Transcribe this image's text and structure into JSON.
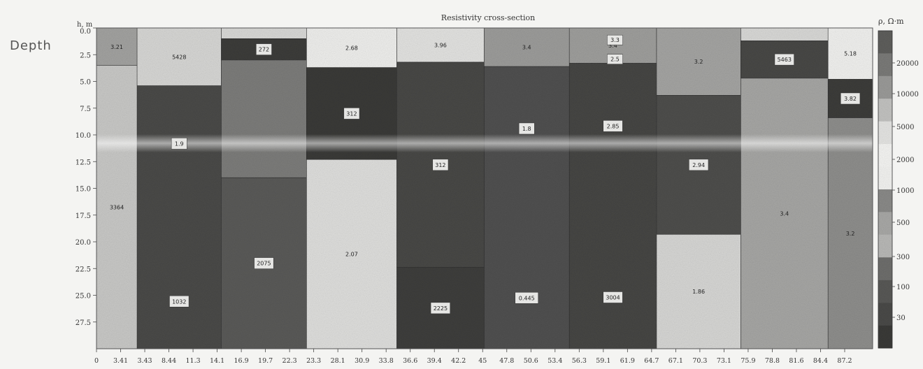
{
  "chart_data": {
    "type": "heatmap",
    "title": "Resistivity cross-section",
    "side_label": "Depth",
    "ylabel": "h, m",
    "colorbar_label": "ρ, Ω·m",
    "ylim": [
      0,
      30
    ],
    "y_ticks": [
      0.0,
      2.5,
      5.0,
      7.5,
      10.0,
      12.5,
      15.0,
      17.5,
      20.0,
      22.5,
      25.0,
      27.5
    ],
    "y_tick_labels": [
      "0.0",
      "2.5",
      "5.0",
      "7.5",
      "10.0",
      "12.5",
      "15.0",
      "17.5",
      "20.0",
      "22.5",
      "25.0",
      "27.5"
    ],
    "x_ticks": [
      0,
      3.41,
      3.43,
      8.44,
      11.3,
      14.1,
      16.9,
      19.7,
      22.3,
      23.3,
      28.1,
      30.9,
      33.8,
      36.6,
      39.4,
      42.2,
      45,
      47.8,
      50.6,
      53.4,
      56.3,
      59.1,
      61.9,
      64.7,
      67.1,
      70.3,
      73.1,
      75.9,
      78.8,
      81.6,
      84.4,
      87.2
    ],
    "x_tick_labels": [
      "0",
      "3.41",
      "3.43",
      "8.44",
      "11.3",
      "14.1",
      "16.9",
      "19.7",
      "22.3",
      "23.3",
      "28.1",
      "30.9",
      "33.8",
      "36.6",
      "39.4",
      "42.2",
      "45",
      "47.8",
      "50.6",
      "53.4",
      "56.3",
      "59.1",
      "61.9",
      "64.7",
      "67.1",
      "70.3",
      "73.1",
      "75.9",
      "78.8",
      "81.6",
      "84.4",
      "87.2"
    ],
    "colorbar_ticks": [
      "20000",
      "10000",
      "5000",
      "2000",
      "1000",
      "500",
      "300",
      "100",
      "30"
    ],
    "blocks": [
      {
        "x0": 0,
        "x1": 4.0,
        "y0": 0,
        "y1": 3.5,
        "color": "#a2a2a0",
        "label": "3.21"
      },
      {
        "x0": 0,
        "x1": 4.0,
        "y0": 3.5,
        "y1": 30,
        "color": "#c8c8c6",
        "label": "3364"
      },
      {
        "x0": 4.0,
        "x1": 12.3,
        "y0": 0,
        "y1": 5.4,
        "color": "#d6d6d4",
        "label": "5428"
      },
      {
        "x0": 4.0,
        "x1": 12.3,
        "y0": 5.4,
        "y1": 30,
        "color": "#4a4a48",
        "label": "1.9"
      },
      {
        "x0": 4.0,
        "x1": 12.3,
        "y0": 5.4,
        "y1": 30,
        "color": "#4a4a48",
        "label": "1032"
      },
      {
        "x0": 12.3,
        "x1": 20.7,
        "y0": 0,
        "y1": 1.0,
        "color": "#d8d8d6",
        "label": ""
      },
      {
        "x0": 12.3,
        "x1": 20.7,
        "y0": 1.0,
        "y1": 3.0,
        "color": "#3c3c3a",
        "label": "272"
      },
      {
        "x0": 12.3,
        "x1": 20.7,
        "y0": 3.0,
        "y1": 14.0,
        "color": "#7c7c7a",
        "label": ""
      },
      {
        "x0": 12.3,
        "x1": 20.7,
        "y0": 14.0,
        "y1": 30,
        "color": "#5a5a58",
        "label": "2075"
      },
      {
        "x0": 20.7,
        "x1": 29.6,
        "y0": 0,
        "y1": 3.7,
        "color": "#eeeeec",
        "label": "2.68"
      },
      {
        "x0": 20.7,
        "x1": 29.6,
        "y0": 3.7,
        "y1": 12.3,
        "color": "#3a3a38",
        "label": "312"
      },
      {
        "x0": 20.7,
        "x1": 29.6,
        "y0": 12.3,
        "y1": 30,
        "color": "#dededc",
        "label": "2.07"
      },
      {
        "x0": 29.6,
        "x1": 38.2,
        "y0": 0,
        "y1": 3.2,
        "color": "#e2e2e0",
        "label": "3.96"
      },
      {
        "x0": 29.6,
        "x1": 38.2,
        "y0": 3.2,
        "y1": 22.4,
        "color": "#484846",
        "label": "312"
      },
      {
        "x0": 29.6,
        "x1": 38.2,
        "y0": 22.4,
        "y1": 30,
        "color": "#3e3e3c",
        "label": "2225"
      },
      {
        "x0": 38.2,
        "x1": 46.6,
        "y0": 0,
        "y1": 3.6,
        "color": "#9c9c9a",
        "label": "3.4"
      },
      {
        "x0": 38.2,
        "x1": 46.6,
        "y0": 3.6,
        "y1": 30,
        "color": "#505050",
        "label": "1.8"
      },
      {
        "x0": 38.2,
        "x1": 46.6,
        "y0": 3.6,
        "y1": 30,
        "color": "#505050",
        "label": "0.445"
      },
      {
        "x0": 46.6,
        "x1": 55.2,
        "y0": 0,
        "y1": 3.3,
        "color": "#9e9e9c",
        "label": "3.4"
      },
      {
        "x0": 46.6,
        "x1": 55.2,
        "y0": 3.3,
        "y1": 30,
        "color": "#464644",
        "label": "2.85"
      },
      {
        "x0": 46.6,
        "x1": 55.2,
        "y0": 3.3,
        "y1": 30,
        "color": "#464644",
        "label": "3004"
      },
      {
        "x0": 55.2,
        "x1": 63.5,
        "y0": 0,
        "y1": 6.3,
        "color": "#a4a4a2",
        "label": "3.2"
      },
      {
        "x0": 55.2,
        "x1": 63.5,
        "y0": 6.3,
        "y1": 19.3,
        "color": "#4e4e4c",
        "label": "2.94"
      },
      {
        "x0": 55.2,
        "x1": 63.5,
        "y0": 19.3,
        "y1": 30,
        "color": "#d6d6d4",
        "label": "1.86"
      },
      {
        "x0": 63.5,
        "x1": 72.1,
        "y0": 0,
        "y1": 1.2,
        "color": "#d8d8d6",
        "label": ""
      },
      {
        "x0": 63.5,
        "x1": 72.1,
        "y0": 1.2,
        "y1": 4.7,
        "color": "#484846",
        "label": "5463"
      },
      {
        "x0": 63.5,
        "x1": 72.1,
        "y0": 4.7,
        "y1": 30,
        "color": "#a6a6a4",
        "label": "3.4"
      },
      {
        "x0": 72.1,
        "x1": 76.5,
        "y0": 0,
        "y1": 4.8,
        "color": "#f0f0ee",
        "label": "5.18"
      },
      {
        "x0": 72.1,
        "x1": 76.5,
        "y0": 4.8,
        "y1": 8.4,
        "color": "#3c3c3a",
        "label": "3.82"
      },
      {
        "x0": 72.1,
        "x1": 76.5,
        "y0": 8.4,
        "y1": 30,
        "color": "#8e8e8c",
        "label": "3.2"
      }
    ],
    "extra_labels": [
      {
        "x": 51.1,
        "y": 0.6,
        "text": "3.3"
      },
      {
        "x": 51.1,
        "y": 2.4,
        "text": "2.5"
      }
    ]
  }
}
